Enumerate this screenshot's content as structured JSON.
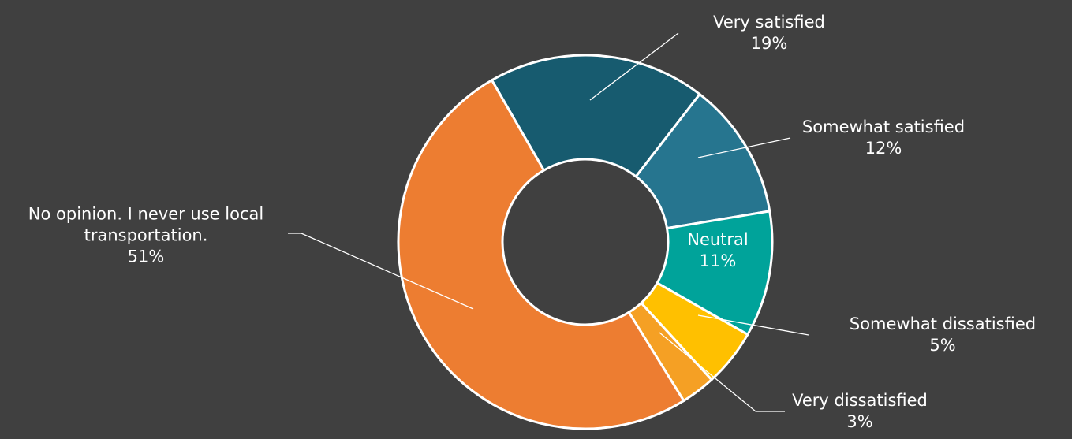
{
  "chart_data": {
    "type": "donut",
    "categories": [
      "Very satisfied",
      "Somewhat satisfied",
      "Neutral",
      "Somewhat dissatisfied",
      "Very dissatisfied",
      "No opinion. I never use local transportation."
    ],
    "values": [
      19,
      12,
      11,
      5,
      3,
      51
    ],
    "value_labels": [
      "19%",
      "12%",
      "11%",
      "5%",
      "3%",
      "51%"
    ],
    "colors": [
      "#175b6f",
      "#26758f",
      "#00a39a",
      "#ffc000",
      "#f5a024",
      "#ed7d31"
    ]
  }
}
